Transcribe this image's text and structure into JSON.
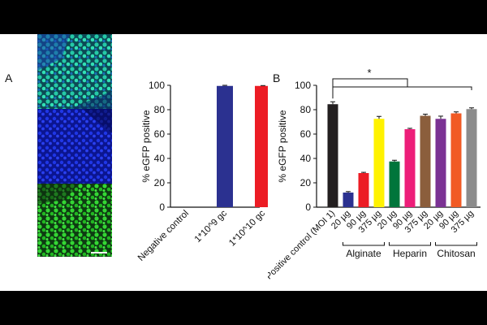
{
  "panel_labels": {
    "a": "A",
    "b": "B"
  },
  "micrograph": {
    "colors": {
      "cyan_green": "#21c7a4",
      "blue": "#1a2fd6",
      "green": "#2fd12f",
      "scale_bar": "#ffffff"
    }
  },
  "chart_data": [
    {
      "type": "bar",
      "categories": [
        "Negative control",
        "1*10^9 gc",
        "1*10^10 gc"
      ],
      "values": [
        0,
        99.5,
        99.5
      ],
      "errors": [
        0,
        0.5,
        0.3
      ],
      "colors": [
        "#888888",
        "#2b3190",
        "#ec1c24"
      ],
      "title": "",
      "xlabel": "",
      "ylabel": "% eGFP positive",
      "ylim": [
        0,
        100
      ],
      "yticks": [
        0,
        20,
        40,
        60,
        80,
        100
      ],
      "grid": false
    },
    {
      "type": "bar",
      "categories": [
        "Positive control (MOI 1)",
        "20 µg",
        "90 µg",
        "375 µg",
        "20 µg",
        "90 µg",
        "375 µg",
        "20 µg",
        "90 µg",
        "375 µg"
      ],
      "values": [
        84.5,
        12,
        28,
        72.5,
        37.5,
        64,
        75,
        72.5,
        77,
        80.5
      ],
      "errors": [
        2,
        0.8,
        0.6,
        2,
        1,
        0.7,
        1.3,
        2.2,
        1.2,
        1
      ],
      "colors": [
        "#231f20",
        "#2b3190",
        "#ec1c24",
        "#fff200",
        "#00753b",
        "#ed1e79",
        "#8b5e3c",
        "#7b3294",
        "#f15a24",
        "#8c8c8c"
      ],
      "groups": [
        {
          "label": "Alginate",
          "start": 1,
          "end": 3
        },
        {
          "label": "Heparin",
          "start": 4,
          "end": 6
        },
        {
          "label": "Chitosan",
          "start": 7,
          "end": 9
        }
      ],
      "significance": {
        "label": "*",
        "from": 0,
        "to": 9
      },
      "title": "",
      "xlabel": "",
      "ylabel": "% eGFP positive",
      "ylim": [
        0,
        100
      ],
      "yticks": [
        0,
        20,
        40,
        60,
        80,
        100
      ],
      "grid": false
    }
  ]
}
